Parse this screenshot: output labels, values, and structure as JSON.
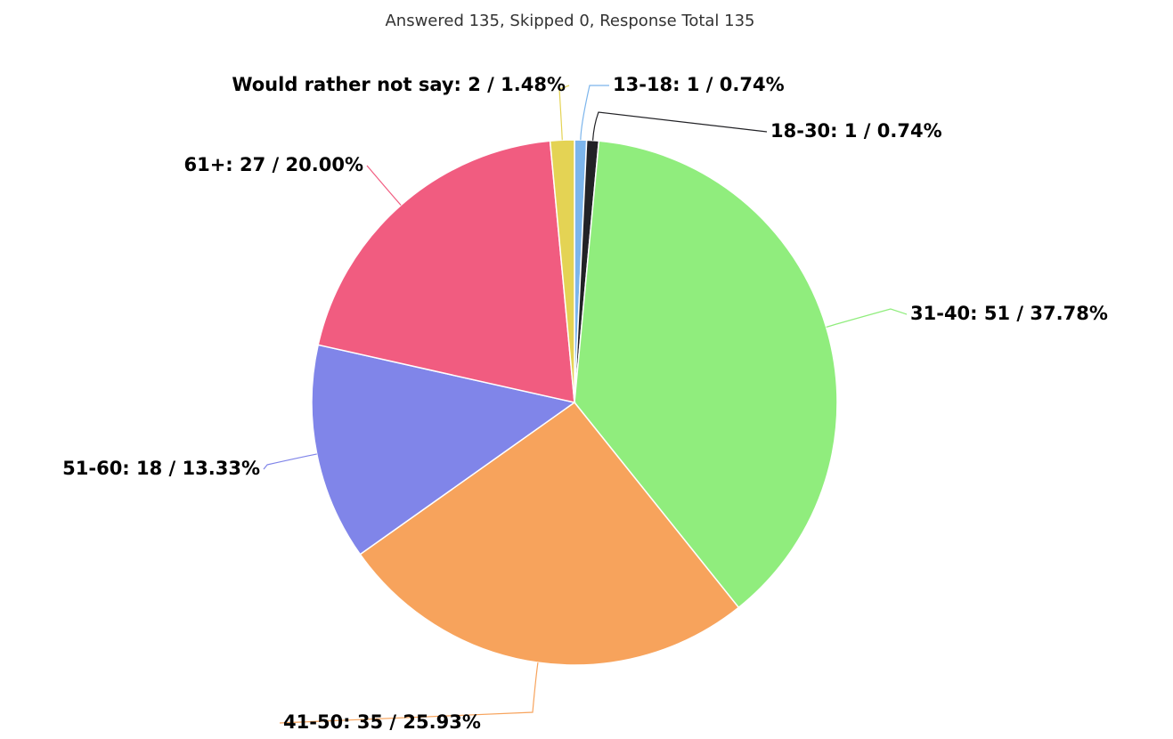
{
  "chart_data": {
    "type": "pie",
    "title": "Answered 135, Skipped 0, Response Total 135",
    "values": [
      1,
      1,
      51,
      35,
      18,
      27,
      2
    ],
    "value_labels": [
      "13-18: 1 / 0.74%",
      "18-30: 1 / 0.74%",
      "31-40: 51 / 37.78%",
      "41-50: 35 / 25.93%",
      "51-60: 18 / 13.33%",
      "61+: 27 / 20.00%",
      "Would rather not say: 2 / 1.48%"
    ],
    "colors": [
      "#7cb5ec",
      "#222226",
      "#90ed7d",
      "#f7a35c",
      "#8085e9",
      "#f15c80",
      "#e4d354"
    ]
  }
}
